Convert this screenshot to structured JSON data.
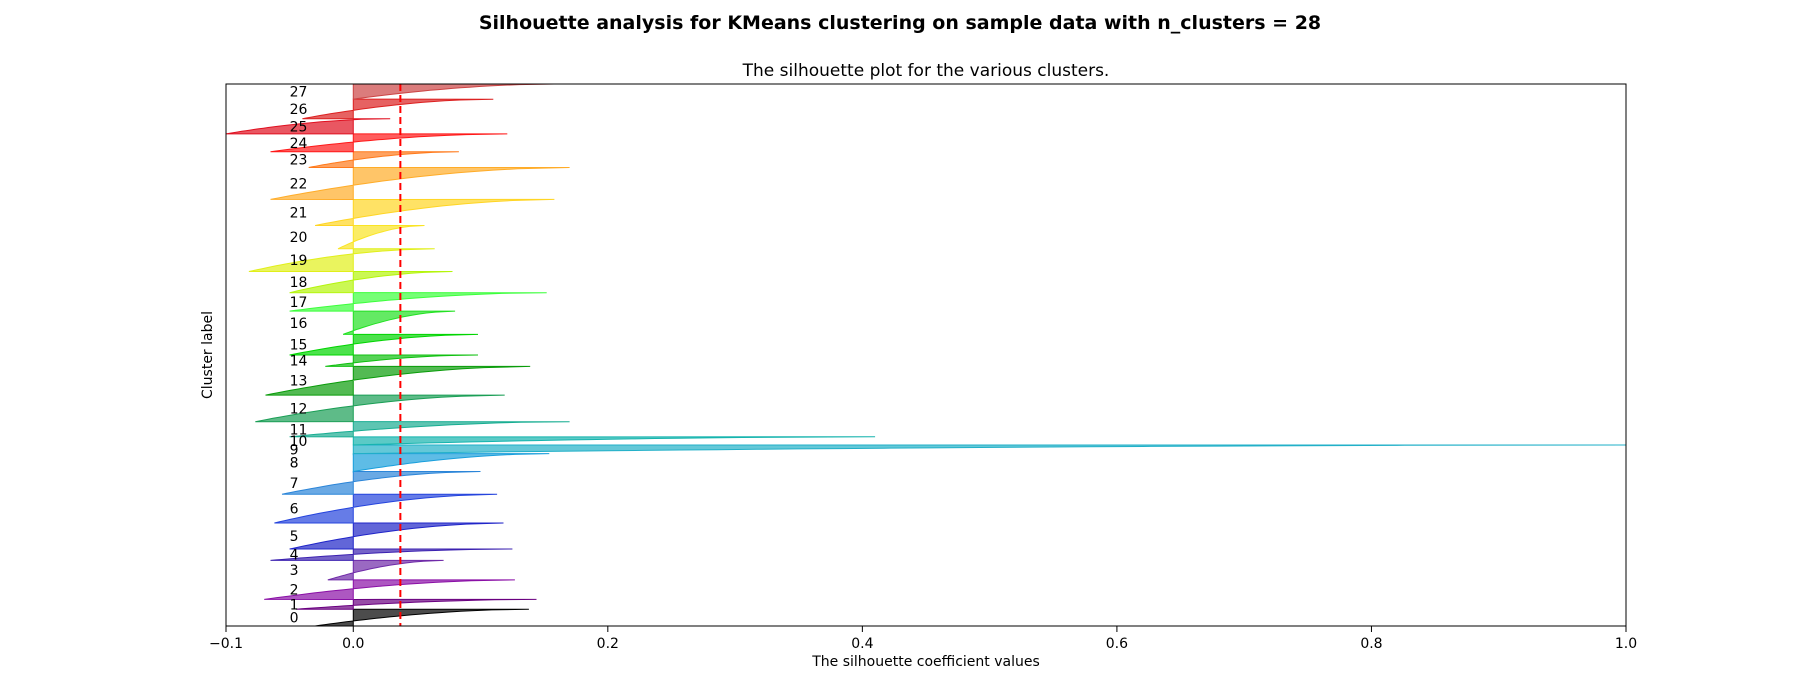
{
  "figure": {
    "suptitle": "Silhouette analysis for KMeans clustering on sample data with n_clusters = 28"
  },
  "chart_data": {
    "type": "area",
    "title": "The silhouette plot for the various clusters.",
    "xlabel": "The silhouette coefficient values",
    "ylabel": "Cluster label",
    "xlim": [
      -0.1,
      1.0
    ],
    "ylim": [
      0,
      1
    ],
    "xticks": [
      -0.1,
      0.0,
      0.2,
      0.4,
      0.6,
      0.8,
      1.0
    ],
    "xtick_labels": [
      "−0.1",
      "0.0",
      "0.2",
      "0.4",
      "0.6",
      "0.8",
      "1.0"
    ],
    "yticks": [],
    "grid": false,
    "average_silhouette_score": 0.037,
    "average_line_color": "#ff0000",
    "clusters": [
      {
        "label": "0",
        "y0": 0.0,
        "y1": 0.031,
        "min": -0.03,
        "max": 0.138,
        "color": "#000000"
      },
      {
        "label": "1",
        "y0": 0.031,
        "y1": 0.049,
        "min": -0.045,
        "max": 0.144,
        "color": "#6a0080"
      },
      {
        "label": "2",
        "y0": 0.049,
        "y1": 0.085,
        "min": -0.07,
        "max": 0.127,
        "color": "#8a0fa6"
      },
      {
        "label": "3",
        "y0": 0.085,
        "y1": 0.121,
        "min": -0.02,
        "max": 0.071,
        "color": "#6f2aa8"
      },
      {
        "label": "4",
        "y0": 0.121,
        "y1": 0.142,
        "min": -0.065,
        "max": 0.125,
        "color": "#3b21b0"
      },
      {
        "label": "5",
        "y0": 0.142,
        "y1": 0.19,
        "min": -0.05,
        "max": 0.118,
        "color": "#2025c8"
      },
      {
        "label": "6",
        "y0": 0.19,
        "y1": 0.243,
        "min": -0.062,
        "max": 0.113,
        "color": "#2544dd"
      },
      {
        "label": "7",
        "y0": 0.243,
        "y1": 0.285,
        "min": -0.056,
        "max": 0.1,
        "color": "#2b85d8"
      },
      {
        "label": "8",
        "y0": 0.285,
        "y1": 0.318,
        "min": 0.0,
        "max": 0.154,
        "color": "#199fdc"
      },
      {
        "label": "9",
        "y0": 0.318,
        "y1": 0.334,
        "min": 0.0,
        "max": 1.0,
        "color": "#22b0c8"
      },
      {
        "label": "10",
        "y0": 0.334,
        "y1": 0.349,
        "min": 0.0,
        "max": 0.41,
        "color": "#16b4ae"
      },
      {
        "label": "11",
        "y0": 0.349,
        "y1": 0.377,
        "min": -0.05,
        "max": 0.17,
        "color": "#19ad92"
      },
      {
        "label": "12",
        "y0": 0.377,
        "y1": 0.426,
        "min": -0.077,
        "max": 0.119,
        "color": "#1a9e55"
      },
      {
        "label": "13",
        "y0": 0.426,
        "y1": 0.479,
        "min": -0.069,
        "max": 0.139,
        "color": "#0a9c0a"
      },
      {
        "label": "14",
        "y0": 0.479,
        "y1": 0.5,
        "min": -0.022,
        "max": 0.098,
        "color": "#10c010"
      },
      {
        "label": "15",
        "y0": 0.5,
        "y1": 0.538,
        "min": -0.05,
        "max": 0.098,
        "color": "#00d500"
      },
      {
        "label": "16",
        "y0": 0.538,
        "y1": 0.581,
        "min": -0.008,
        "max": 0.08,
        "color": "#22e122"
      },
      {
        "label": "17",
        "y0": 0.581,
        "y1": 0.615,
        "min": -0.05,
        "max": 0.152,
        "color": "#3cff3c"
      },
      {
        "label": "18",
        "y0": 0.615,
        "y1": 0.654,
        "min": -0.05,
        "max": 0.078,
        "color": "#b5f50c"
      },
      {
        "label": "19",
        "y0": 0.654,
        "y1": 0.696,
        "min": -0.082,
        "max": 0.064,
        "color": "#e1ef1a"
      },
      {
        "label": "20",
        "y0": 0.696,
        "y1": 0.739,
        "min": -0.012,
        "max": 0.056,
        "color": "#fae424"
      },
      {
        "label": "21",
        "y0": 0.739,
        "y1": 0.787,
        "min": -0.03,
        "max": 0.158,
        "color": "#ffd524"
      },
      {
        "label": "22",
        "y0": 0.787,
        "y1": 0.846,
        "min": -0.065,
        "max": 0.17,
        "color": "#ffac28"
      },
      {
        "label": "23",
        "y0": 0.846,
        "y1": 0.875,
        "min": -0.035,
        "max": 0.083,
        "color": "#ff7a1c"
      },
      {
        "label": "24",
        "y0": 0.875,
        "y1": 0.908,
        "min": -0.065,
        "max": 0.121,
        "color": "#ff1818"
      },
      {
        "label": "25",
        "y0": 0.908,
        "y1": 0.936,
        "min": -0.1,
        "max": 0.029,
        "color": "#e01020"
      },
      {
        "label": "26",
        "y0": 0.936,
        "y1": 0.972,
        "min": -0.04,
        "max": 0.11,
        "color": "#dc2020"
      },
      {
        "label": "27",
        "y0": 0.972,
        "y1": 1.0,
        "min": 0.0,
        "max": 0.158,
        "color": "#cc4444"
      }
    ]
  }
}
